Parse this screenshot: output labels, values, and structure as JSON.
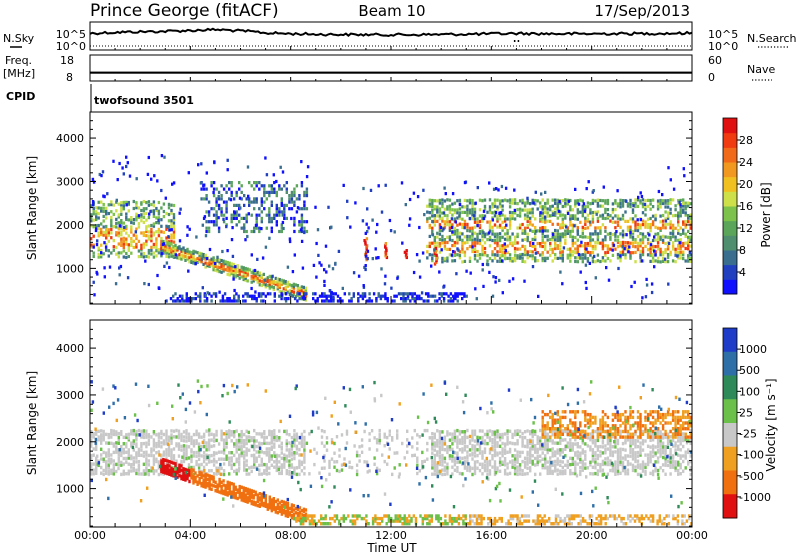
{
  "header": {
    "station": "Prince George (fitACF)",
    "beam": "Beam 10",
    "date": "17/Sep/2013"
  },
  "chart_data": [
    {
      "type": "line",
      "title": "N.Sky / N.Search",
      "left_label": "N.Sky",
      "right_label": "N.Search",
      "left_ticks": [
        "10^5",
        "10^0"
      ],
      "right_ticks": [
        "10^5",
        "10^0"
      ],
      "scale": "log",
      "ylim": [
        1,
        100000
      ],
      "series": [
        {
          "name": "N.Sky",
          "style": "solid",
          "values": [
            3200,
            6000,
            9000,
            12000,
            20000,
            35000,
            15000,
            4000,
            2500,
            1800,
            1500,
            1400,
            1300,
            1400,
            1600,
            1900,
            2400,
            3000,
            2600,
            2400,
            2500,
            2700,
            2800,
            3200,
            3600
          ]
        },
        {
          "name": "N.Search",
          "style": "dotted",
          "values": [
            1,
            1,
            1,
            1,
            1,
            1,
            1,
            1,
            1,
            1,
            1,
            1,
            1,
            1,
            1,
            1,
            1,
            1,
            1,
            1,
            1,
            1,
            1,
            1,
            1
          ]
        }
      ]
    },
    {
      "type": "line",
      "title": "Freq. / Nave",
      "left_label": "Freq.",
      "left_units": "[MHz]",
      "right_label": "Nave",
      "left_ticks": [
        "18",
        "8"
      ],
      "right_ticks": [
        "60",
        "0"
      ],
      "ylim_freq": [
        8,
        18
      ],
      "ylim_nave": [
        0,
        60
      ],
      "series": [
        {
          "name": "Freq.",
          "value_mhz_range": [
            10.8,
            11.6
          ]
        },
        {
          "name": "Nave",
          "value": 0
        }
      ]
    },
    {
      "type": "heatmap",
      "variable": "power",
      "ylabel": "Slant Range [km]",
      "yticks": [
        "1000",
        "2000",
        "3000",
        "4000"
      ],
      "ylim": [
        180,
        4600
      ],
      "colorbar_label": "Power [dB]",
      "colorbar_ticks": [
        "4",
        "8",
        "12",
        "16",
        "20",
        "24",
        "28"
      ],
      "colorbar_colors": [
        "#1010ff",
        "#2040c0",
        "#3a6e8f",
        "#4f8f6f",
        "#5aa55a",
        "#7dc24a",
        "#cde04a",
        "#f0c020",
        "#f09820",
        "#f06a1a",
        "#f03a10",
        "#e01010"
      ],
      "regions": [
        {
          "label": "main band",
          "hours": [
            0,
            3.2
          ],
          "range_km": [
            1200,
            2600
          ],
          "level": "medium-high"
        },
        {
          "label": "descending echo",
          "hours": [
            2.5,
            8.5
          ],
          "range_km": [
            400,
            1700
          ],
          "level": "high"
        },
        {
          "label": "sea scatter",
          "hours": [
            3,
            15
          ],
          "range_km": [
            250,
            450
          ],
          "level": "low"
        },
        {
          "label": "upper blobs",
          "hours": [
            4.5,
            8.5
          ],
          "range_km": [
            1800,
            3000
          ],
          "level": "low-medium"
        },
        {
          "label": "afternoon band",
          "hours": [
            13.5,
            24
          ],
          "range_km": [
            1100,
            2600
          ],
          "level": "medium-high"
        },
        {
          "label": "red streaks",
          "hours": [
            10.8,
            13.8
          ],
          "range_km": [
            1100,
            1700
          ],
          "level": "very high"
        }
      ]
    },
    {
      "type": "heatmap",
      "variable": "velocity",
      "ylabel": "Slant Range [km]",
      "yticks": [
        "1000",
        "2000",
        "3000",
        "4000"
      ],
      "ylim": [
        180,
        4600
      ],
      "xlabel": "Time UT",
      "xticks": [
        "00:00",
        "04:00",
        "08:00",
        "12:00",
        "16:00",
        "20:00",
        "00:00"
      ],
      "xlim_hours": [
        0,
        24
      ],
      "colorbar_label": "Velocity [m s⁻¹]",
      "colorbar_ticks": [
        "1000",
        "500",
        "100",
        "25",
        "-25",
        "-100",
        "-500",
        "-1000"
      ],
      "colorbar_colors": [
        "#1e3cc8",
        "#2f6fa8",
        "#2f8a5a",
        "#6bc04a",
        "#c8c8c8",
        "#f0a020",
        "#f07010",
        "#e01010"
      ],
      "regions": [
        {
          "label": "grey ground scatter",
          "hours": [
            0,
            24
          ],
          "range_km": [
            1300,
            2200
          ],
          "velocity": "±25"
        },
        {
          "label": "orange descending",
          "hours": [
            2.5,
            8.5
          ],
          "range_km": [
            400,
            1700
          ],
          "velocity": "-500"
        },
        {
          "label": "sea scatter",
          "hours": [
            8,
            24
          ],
          "range_km": [
            250,
            450
          ],
          "velocity": "-100 / 100"
        },
        {
          "label": "upper evening arc",
          "hours": [
            18,
            24
          ],
          "range_km": [
            2100,
            2600
          ],
          "velocity": "-100 / -500"
        }
      ]
    }
  ],
  "mode": {
    "cpid_label": "CPID",
    "cpid_value": "twofsound 3501"
  }
}
